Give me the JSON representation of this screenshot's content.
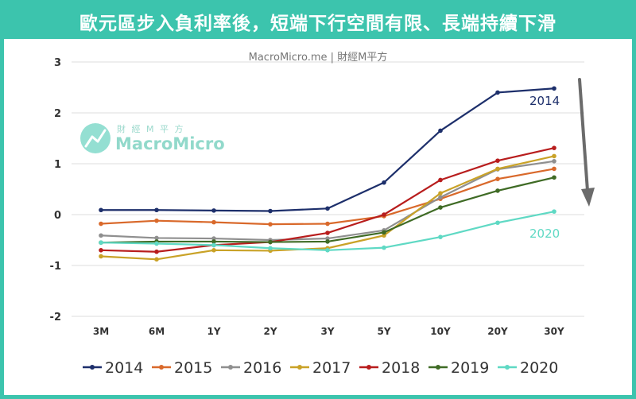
{
  "header": {
    "title": "歐元區步入負利率後，短端下行空間有限、長端持續下滑"
  },
  "watermark": {
    "source": "MacroMicro.me | 財經M平方",
    "logo_cn": "財 經 M 平 方",
    "logo_en": "MacroMicro"
  },
  "annotations": {
    "label_2014": "2014",
    "label_2020": "2020"
  },
  "chart_data": {
    "type": "line",
    "categories": [
      "3M",
      "6M",
      "1Y",
      "2Y",
      "3Y",
      "5Y",
      "10Y",
      "20Y",
      "30Y"
    ],
    "ylim": [
      -2,
      3
    ],
    "yticks": [
      "-2",
      "-1",
      "0",
      "1",
      "2",
      "3"
    ],
    "grid": true,
    "legend_position": "bottom",
    "series": [
      {
        "name": "2014",
        "color": "#1d2f6b",
        "values": [
          0.09,
          0.09,
          0.08,
          0.07,
          0.12,
          0.63,
          1.65,
          2.4,
          2.48
        ]
      },
      {
        "name": "2015",
        "color": "#d9692b",
        "values": [
          -0.18,
          -0.12,
          -0.15,
          -0.19,
          -0.18,
          -0.03,
          0.31,
          0.7,
          0.9
        ]
      },
      {
        "name": "2016",
        "color": "#8f8f8f",
        "values": [
          -0.41,
          -0.46,
          -0.47,
          -0.5,
          -0.47,
          -0.31,
          0.34,
          0.89,
          1.05
        ]
      },
      {
        "name": "2017",
        "color": "#c9a227",
        "values": [
          -0.82,
          -0.88,
          -0.7,
          -0.71,
          -0.66,
          -0.41,
          0.42,
          0.9,
          1.15
        ]
      },
      {
        "name": "2018",
        "color": "#b81d1d",
        "values": [
          -0.7,
          -0.73,
          -0.6,
          -0.54,
          -0.36,
          0.0,
          0.68,
          1.06,
          1.31
        ]
      },
      {
        "name": "2019",
        "color": "#3f6b25",
        "values": [
          -0.55,
          -0.53,
          -0.53,
          -0.54,
          -0.53,
          -0.35,
          0.14,
          0.47,
          0.73
        ]
      },
      {
        "name": "2020",
        "color": "#5fd9c4",
        "values": [
          -0.55,
          -0.57,
          -0.6,
          -0.66,
          -0.7,
          -0.65,
          -0.44,
          -0.16,
          0.06
        ]
      }
    ]
  }
}
